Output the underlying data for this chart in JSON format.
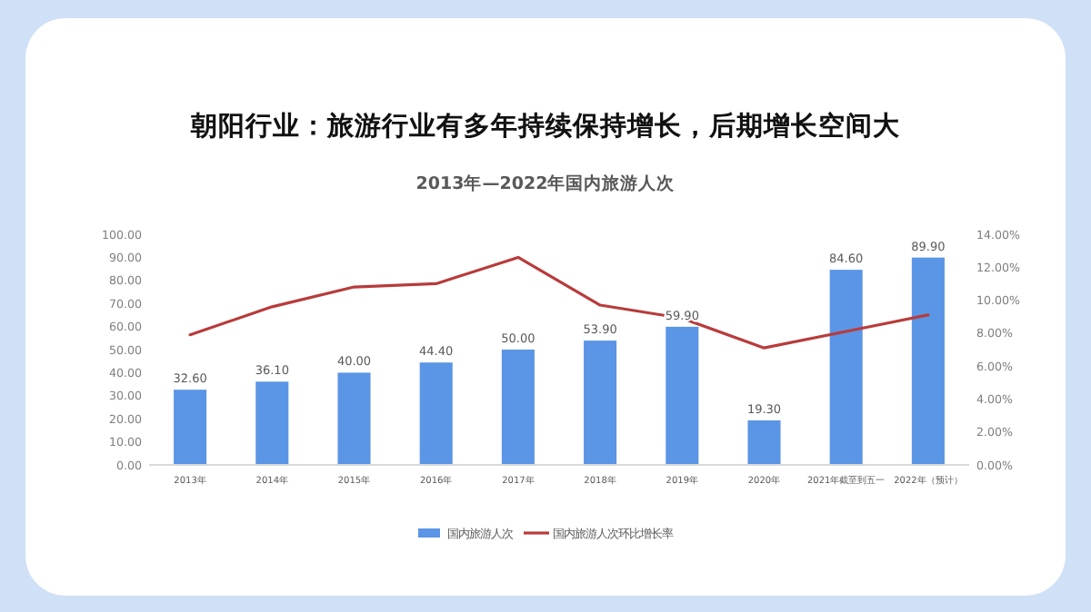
{
  "chart_data": {
    "type": "bar",
    "title": "朝阳行业：旅游行业有多年持续保持增长，后期增长空间大",
    "subtitle": "2013年—2022年国内旅游人次",
    "categories": [
      "2013年",
      "2014年",
      "2015年",
      "2016年",
      "2017年",
      "2018年",
      "2019年",
      "2020年",
      "2021年截至到五一",
      "2022年（预计）"
    ],
    "series": [
      {
        "name": "国内旅游人次",
        "color": "#5b95e5",
        "values": [
          32.6,
          36.1,
          40.0,
          44.4,
          50.0,
          53.9,
          59.9,
          19.3,
          84.6,
          89.9
        ],
        "value_labels": [
          "32.60",
          "36.10",
          "40.00",
          "44.40",
          "50.00",
          "53.90",
          "59.90",
          "19.30",
          "84.60",
          "89.90"
        ]
      },
      {
        "name": "国内旅游人次环比增长率",
        "type": "line",
        "axis": "y2",
        "color": "#b83b3b",
        "values": [
          7.9,
          9.6,
          10.8,
          11.0,
          12.6,
          9.7,
          8.9,
          7.1,
          8.1,
          9.1
        ]
      }
    ],
    "ylim": [
      0,
      100
    ],
    "yticks": [
      {
        "value": 0,
        "label": "0.00"
      },
      {
        "value": 10,
        "label": "10.00"
      },
      {
        "value": 20,
        "label": "20.00"
      },
      {
        "value": 30,
        "label": "30.00"
      },
      {
        "value": 40,
        "label": "40.00"
      },
      {
        "value": 50,
        "label": "50.00"
      },
      {
        "value": 60,
        "label": "60.00"
      },
      {
        "value": 70,
        "label": "70.00"
      },
      {
        "value": 80,
        "label": "80.00"
      },
      {
        "value": 90,
        "label": "90.00"
      },
      {
        "value": 100,
        "label": "100.00"
      }
    ],
    "y2lim": [
      0,
      14
    ],
    "y2ticks": [
      {
        "value": 0,
        "label": "0.00%"
      },
      {
        "value": 2,
        "label": "2.00%"
      },
      {
        "value": 4,
        "label": "4.00%"
      },
      {
        "value": 6,
        "label": "6.00%"
      },
      {
        "value": 8,
        "label": "8.00%"
      },
      {
        "value": 10,
        "label": "10.00%"
      },
      {
        "value": 12,
        "label": "12.00%"
      },
      {
        "value": 14,
        "label": "14.00%"
      }
    ],
    "grid": false,
    "legend": "bottom",
    "marker": "none"
  }
}
